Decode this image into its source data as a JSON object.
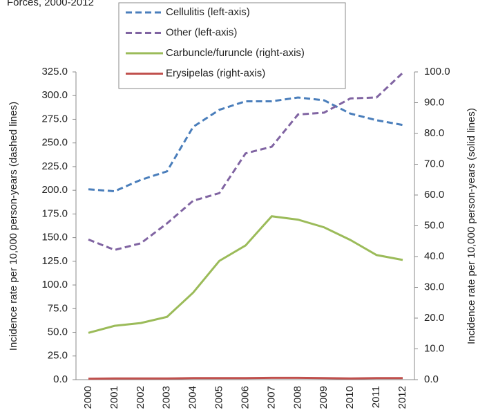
{
  "chart_data": {
    "type": "line",
    "title": "Forces, 2000-2012",
    "y_label": "Incidence rate per 10,000 person-years (dashed lines)",
    "y2_label": "Incidence rate per 10,000 person-years (solid lines)",
    "categories": [
      "2000",
      "2001",
      "2002",
      "2003",
      "2004",
      "2005",
      "2006",
      "2007",
      "2008",
      "2009",
      "2010",
      "2011",
      "2012"
    ],
    "ylim": [
      0,
      325
    ],
    "yticks": [
      {
        "value": 0,
        "label": "0.0"
      },
      {
        "value": 25,
        "label": "25.0"
      },
      {
        "value": 50,
        "label": "50.0"
      },
      {
        "value": 75,
        "label": "75.0"
      },
      {
        "value": 100,
        "label": "100.0"
      },
      {
        "value": 125,
        "label": "125.0"
      },
      {
        "value": 150,
        "label": "150.0"
      },
      {
        "value": 175,
        "label": "175.0"
      },
      {
        "value": 200,
        "label": "200.0"
      },
      {
        "value": 225,
        "label": "225.0"
      },
      {
        "value": 250,
        "label": "250.0"
      },
      {
        "value": 275,
        "label": "275.0"
      },
      {
        "value": 300,
        "label": "300.0"
      },
      {
        "value": 325,
        "label": "325.0"
      }
    ],
    "y2lim": [
      0,
      100
    ],
    "y2ticks": [
      {
        "value": 0,
        "label": "0.0"
      },
      {
        "value": 10,
        "label": "10.0"
      },
      {
        "value": 20,
        "label": "20.0"
      },
      {
        "value": 30,
        "label": "30.0"
      },
      {
        "value": 40,
        "label": "40.0"
      },
      {
        "value": 50,
        "label": "50.0"
      },
      {
        "value": 60,
        "label": "60.0"
      },
      {
        "value": 70,
        "label": "70.0"
      },
      {
        "value": 80,
        "label": "80.0"
      },
      {
        "value": 90,
        "label": "90.0"
      },
      {
        "value": 100,
        "label": "100.0"
      }
    ],
    "series": [
      {
        "name": "Cellulitis (left-axis)",
        "color": "#4a7ebb",
        "dashed": true,
        "axis": "y",
        "values": [
          201,
          199,
          211,
          220,
          267,
          285,
          294,
          294,
          298,
          295,
          281,
          274,
          269
        ]
      },
      {
        "name": "Other (left-axis)",
        "color": "#8064a2",
        "dashed": true,
        "axis": "y",
        "values": [
          148,
          137,
          144,
          165,
          189,
          197,
          239,
          246,
          280,
          282,
          297,
          298,
          324
        ]
      },
      {
        "name": "Carbuncle/furuncle (right-axis)",
        "color": "#9bbb59",
        "dashed": false,
        "axis": "y2",
        "values": [
          15.2,
          17.5,
          18.4,
          20.4,
          28.3,
          38.6,
          43.6,
          53.1,
          52.0,
          49.5,
          45.4,
          40.5,
          38.9
        ]
      },
      {
        "name": "Erysipelas (right-axis)",
        "color": "#c0504d",
        "dashed": false,
        "axis": "y2",
        "values": [
          0.3,
          0.4,
          0.4,
          0.4,
          0.5,
          0.5,
          0.5,
          0.6,
          0.6,
          0.5,
          0.4,
          0.5,
          0.5
        ]
      }
    ]
  }
}
